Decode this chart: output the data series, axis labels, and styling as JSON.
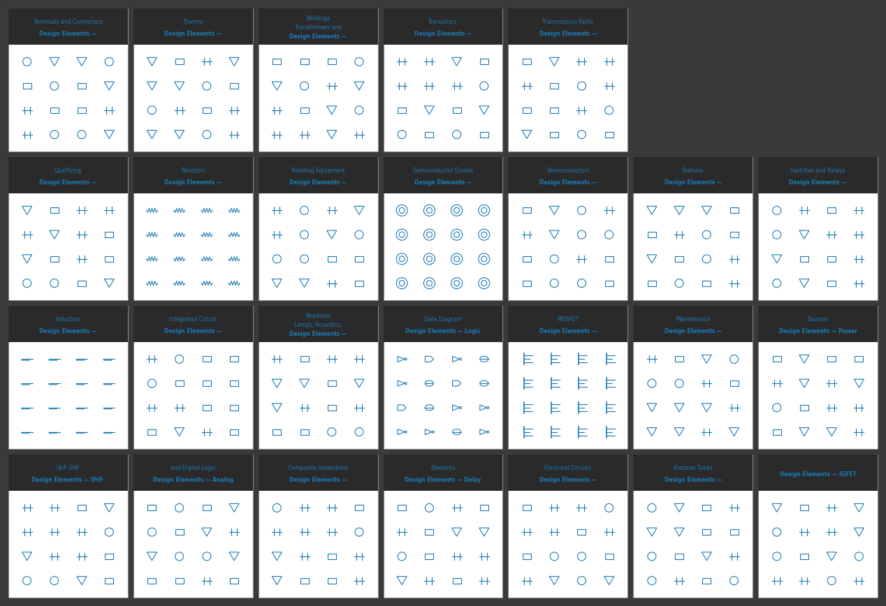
{
  "background_color": "#3a3a3a",
  "card_bg": "#ffffff",
  "card_border": "#555555",
  "symbol_color": "#1a7ab5",
  "text_color": "#ffffff",
  "title_color": "#ffffff",
  "label_color": "#1a7ab5",
  "grid_rows": 4,
  "grid_cols": 7,
  "cards": [
    {
      "row": 0,
      "col": 0,
      "label": "Design Elements — VHF-\nUHF-SHF"
    },
    {
      "row": 0,
      "col": 1,
      "label": "Design Elements — Analog\nand Digital Logic"
    },
    {
      "row": 0,
      "col": 2,
      "label": "Design Elements —\nComposite Assemblies"
    },
    {
      "row": 0,
      "col": 3,
      "label": "Design Elements — Delay\nElements"
    },
    {
      "row": 0,
      "col": 4,
      "label": "Design Elements —\nElectrical Circuits"
    },
    {
      "row": 0,
      "col": 5,
      "label": "Design Elements —\nElectron Tubes"
    },
    {
      "row": 0,
      "col": 6,
      "label": "Design Elements — IGFET"
    },
    {
      "row": 1,
      "col": 0,
      "label": "Design Elements —\nInductors"
    },
    {
      "row": 1,
      "col": 1,
      "label": "Design Elements —\nIntegrated Circuit"
    },
    {
      "row": 1,
      "col": 2,
      "label": "Design Elements —\nLamps, Acoustics,\nReadouts"
    },
    {
      "row": 1,
      "col": 3,
      "label": "Design Elements — Logic\nGate Diagram"
    },
    {
      "row": 1,
      "col": 4,
      "label": "Design Elements —\nMOSFET"
    },
    {
      "row": 1,
      "col": 5,
      "label": "Design Elements —\nMaintenance"
    },
    {
      "row": 1,
      "col": 6,
      "label": "Design Elements — Power\nSources"
    },
    {
      "row": 2,
      "col": 0,
      "label": "Design Elements —\nQualifying"
    },
    {
      "row": 2,
      "col": 1,
      "label": "Design Elements —\nResistors"
    },
    {
      "row": 2,
      "col": 2,
      "label": "Design Elements —\nRotating Equipment"
    },
    {
      "row": 2,
      "col": 3,
      "label": "Design Elements —\nSemiconductor Diodes"
    },
    {
      "row": 2,
      "col": 4,
      "label": "Design Elements —\nSemiconductors"
    },
    {
      "row": 2,
      "col": 5,
      "label": "Design Elements —\nStations"
    },
    {
      "row": 2,
      "col": 6,
      "label": "Design Elements —\nSwitches and Relays"
    },
    {
      "row": 3,
      "col": 0,
      "label": "Design Elements —\nTerminals and Connectors"
    },
    {
      "row": 3,
      "col": 1,
      "label": "Design Elements —\nThermo"
    },
    {
      "row": 3,
      "col": 2,
      "label": "Design Elements —\nTransformers and\nWindings"
    },
    {
      "row": 3,
      "col": 3,
      "label": "Design Elements —\nTransistors"
    },
    {
      "row": 3,
      "col": 4,
      "label": "Design Elements —\nTransmission Paths"
    }
  ],
  "figsize": [
    12.68,
    8.68
  ],
  "dpi": 100
}
